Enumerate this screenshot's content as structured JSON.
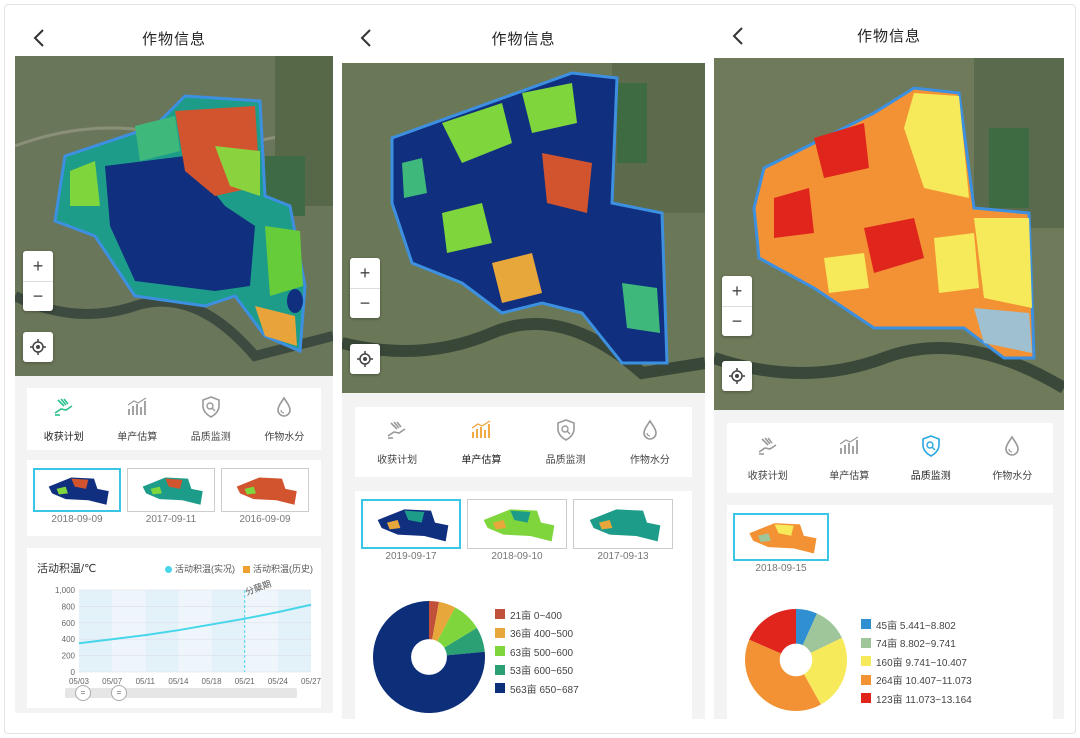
{
  "panels": [
    {
      "title": "作物信息",
      "zoom_in": "+",
      "zoom_out": "−",
      "tabs": [
        {
          "label": "收获计划",
          "icon": "harvest-hand-icon",
          "active": true
        },
        {
          "label": "单产估算",
          "icon": "yield-bar-icon",
          "active": false
        },
        {
          "label": "品质监测",
          "icon": "quality-shield-icon",
          "active": false
        },
        {
          "label": "作物水分",
          "icon": "water-drop-icon",
          "active": false
        }
      ],
      "thumbnails": [
        {
          "date": "2018-09-09",
          "selected": true
        },
        {
          "date": "2017-09-11",
          "selected": false
        },
        {
          "date": "2016-09-09",
          "selected": false
        }
      ],
      "chart": {
        "title": "活动积温/℃",
        "legend": [
          {
            "label": "活动积温(实况)",
            "color": "#46d6ea"
          },
          {
            "label": "活动积温(历史)",
            "color": "#f0a030"
          }
        ],
        "annotation": "分蘖期",
        "chart_data": {
          "type": "line",
          "categories": [
            "05/03",
            "05/07",
            "05/11",
            "05/14",
            "05/18",
            "05/21",
            "05/24",
            "05/27"
          ],
          "yticks": [
            "0",
            "200",
            "400",
            "600",
            "800",
            "1,000"
          ],
          "ylim": [
            0,
            1000
          ],
          "series": [
            {
              "name": "活动积温(实况)",
              "values": [
                350,
                400,
                450,
                510,
                580,
                650,
                730,
                820
              ]
            }
          ],
          "marker_category": "05/21",
          "grid": true
        }
      }
    },
    {
      "title": "作物信息",
      "zoom_in": "+",
      "zoom_out": "−",
      "tabs": [
        {
          "label": "收获计划",
          "icon": "harvest-hand-icon",
          "active": false
        },
        {
          "label": "单产估算",
          "icon": "yield-bar-icon",
          "active": true
        },
        {
          "label": "品质监测",
          "icon": "quality-shield-icon",
          "active": false
        },
        {
          "label": "作物水分",
          "icon": "water-drop-icon",
          "active": false
        }
      ],
      "thumbnails": [
        {
          "date": "2019-09-17",
          "selected": true
        },
        {
          "date": "2018-09-10",
          "selected": false
        },
        {
          "date": "2017-09-13",
          "selected": false
        }
      ],
      "chart_data": {
        "type": "pie",
        "categories": [
          "21亩 0~400",
          "36亩 400~500",
          "63亩 500~600",
          "53亩 600~650",
          "563亩 650~687"
        ],
        "values": [
          21,
          36,
          63,
          53,
          563
        ],
        "colors": [
          "#c0503a",
          "#e8a73a",
          "#7fd63c",
          "#2aa074",
          "#0d2f7a"
        ]
      }
    },
    {
      "title": "作物信息",
      "zoom_in": "+",
      "zoom_out": "−",
      "tabs": [
        {
          "label": "收获计划",
          "icon": "harvest-hand-icon",
          "active": false
        },
        {
          "label": "单产估算",
          "icon": "yield-bar-icon",
          "active": false
        },
        {
          "label": "品质监测",
          "icon": "quality-shield-icon",
          "active": true
        },
        {
          "label": "作物水分",
          "icon": "water-drop-icon",
          "active": false
        }
      ],
      "thumbnails": [
        {
          "date": "2018-09-15",
          "selected": true
        }
      ],
      "chart_data": {
        "type": "pie",
        "categories": [
          "45亩 5.441~8.802",
          "74亩 8.802~9.741",
          "160亩 9.741~10.407",
          "264亩 10.407~11.073",
          "123亩 11.073~13.164"
        ],
        "values": [
          45,
          74,
          160,
          264,
          123
        ],
        "colors": [
          "#2f8fd0",
          "#9fc59a",
          "#f7ea5a",
          "#f39235",
          "#e0251c"
        ]
      }
    }
  ]
}
